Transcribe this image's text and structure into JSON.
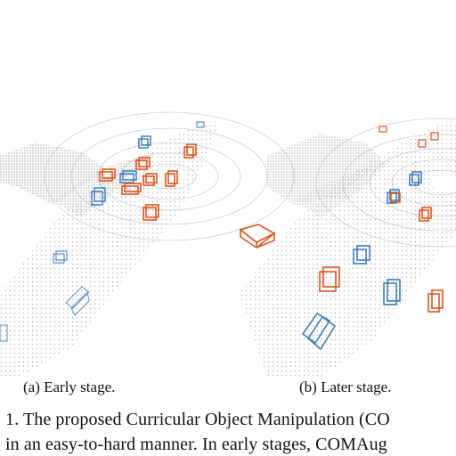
{
  "captions": {
    "early": "(a) Early stage.",
    "later": "(b) Later stage."
  },
  "figure_caption": {
    "line1": "1. The proposed Curricular Object Manipulation (CO",
    "line2": "in an easy-to-hard manner. In early stages, COMAug"
  },
  "colors": {
    "point_cloud": "#9a9a9a",
    "gt_box": "#3a7fc6",
    "aug_box": "#e5531a"
  }
}
